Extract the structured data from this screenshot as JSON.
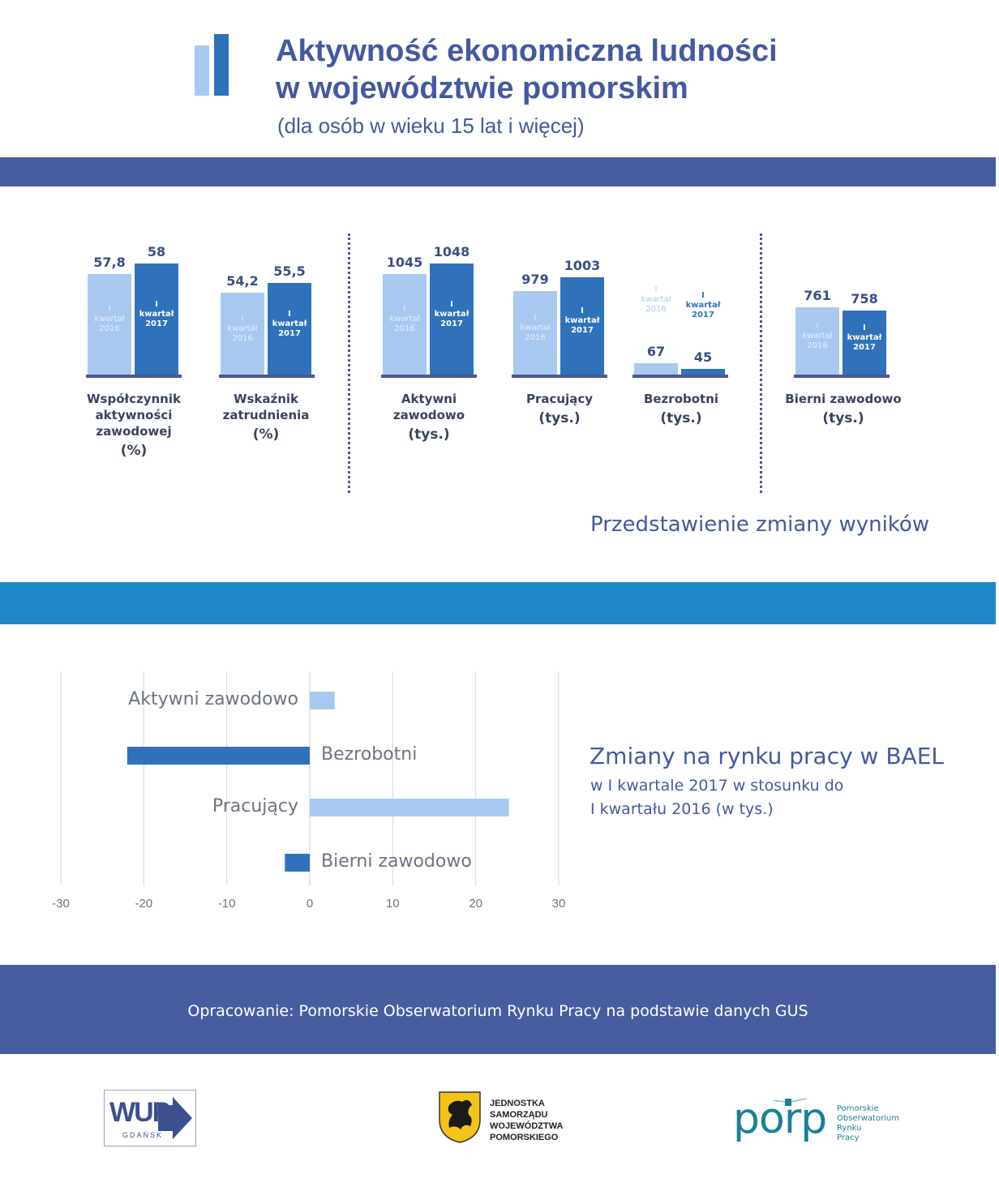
{
  "header": {
    "title_line1": "Aktywność ekonomiczna ludności",
    "title_line2": "w województwie pomorskim",
    "subtitle": "(dla osób w wieku 15 lat i więcej)"
  },
  "colors": {
    "navy_band": "#485da0",
    "blue_band": "#2188c8",
    "bar_light": "#a9c8ef",
    "bar_dark": "#2f72bb",
    "title": "#4558a0"
  },
  "bar_legend": {
    "period_2016": "I kwartał 2016",
    "period_2017": "I kwartał 2017",
    "bar_inner_top": "I",
    "bar_inner_mid": "kwartał",
    "bar_inner_2016": "2016",
    "bar_inner_2017": "2017"
  },
  "metrics": [
    {
      "name_lines": [
        "Współczynnik",
        "aktywności",
        "zawodowej"
      ],
      "unit": "(%)",
      "v2016": "57,8",
      "v2017": "58"
    },
    {
      "name_lines": [
        "Wskaźnik",
        "zatrudnienia"
      ],
      "unit": "(%)",
      "v2016": "54,2",
      "v2017": "55,5"
    },
    {
      "name_lines": [
        "Aktywni",
        "zawodowo"
      ],
      "unit": "(tys.)",
      "v2016": "1045",
      "v2017": "1048"
    },
    {
      "name_lines": [
        "Pracujący"
      ],
      "unit": "(tys.)",
      "v2016": "979",
      "v2017": "1003"
    },
    {
      "name_lines": [
        "Bezrobotni"
      ],
      "unit": "(tys.)",
      "v2016": "67",
      "v2017": "45"
    },
    {
      "name_lines": [
        "Bierni zawodowo"
      ],
      "unit": "(tys.)",
      "v2016": "761",
      "v2017": "758"
    }
  ],
  "section_title": "Przedstawienie zmiany wyników",
  "chart_data": {
    "type": "bar",
    "orientation": "horizontal",
    "categories": [
      "Aktywni zawodowo",
      "Bezrobotni",
      "Pracujący",
      "Bierni zawodowo"
    ],
    "values": [
      3,
      -22,
      24,
      -3
    ],
    "colors": [
      "#a9c8ef",
      "#2f72bb",
      "#a9c8ef",
      "#2f72bb"
    ],
    "xlim": [
      -30,
      30
    ],
    "xticks": [
      "-30",
      "-20",
      "-10",
      "0",
      "10",
      "20",
      "30"
    ],
    "grid": true
  },
  "info": {
    "title": "Zmiany na rynku pracy w BAEL",
    "line1": "w I kwartale 2017 w stosunku do",
    "line2": "I kwartału 2016 (w tys.)"
  },
  "footer": {
    "text": "Opracowanie: Pomorskie Obserwatorium Rynku Pracy na podstawie danych GUS"
  },
  "logos": {
    "wup": "WUP",
    "wup_sub": "GDAŃSK",
    "jst_lines": [
      "JEDNOSTKA",
      "SAMORZĄDU",
      "WOJEWÓDZTWA",
      "POMORSKIEGO"
    ],
    "porp": "porp",
    "porp_lines": [
      "Pomorskie",
      "Obserwatorium",
      "Rynku",
      "Pracy"
    ]
  }
}
